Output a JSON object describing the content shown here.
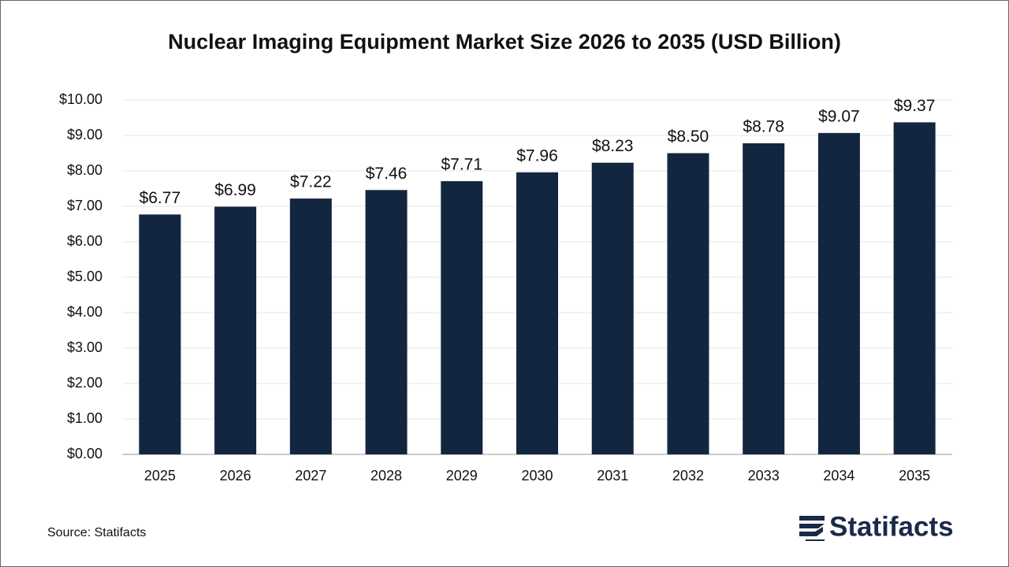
{
  "chart_data": {
    "type": "bar",
    "title": "Nuclear Imaging Equipment Market Size 2026 to 2035 (USD Billion)",
    "categories": [
      "2025",
      "2026",
      "2027",
      "2028",
      "2029",
      "2030",
      "2031",
      "2032",
      "2033",
      "2034",
      "2035"
    ],
    "values": [
      6.77,
      6.99,
      7.22,
      7.46,
      7.71,
      7.96,
      8.23,
      8.5,
      8.78,
      9.07,
      9.37
    ],
    "value_labels": [
      "$6.77",
      "$6.99",
      "$7.22",
      "$7.46",
      "$7.71",
      "$7.96",
      "$8.23",
      "$8.50",
      "$8.78",
      "$9.07",
      "$9.37"
    ],
    "color": "#132640",
    "ylim": [
      0,
      10
    ],
    "yticks": [
      {
        "value": 0,
        "label": "$0.00"
      },
      {
        "value": 1,
        "label": "$1.00"
      },
      {
        "value": 2,
        "label": "$2.00"
      },
      {
        "value": 3,
        "label": "$3.00"
      },
      {
        "value": 4,
        "label": "$4.00"
      },
      {
        "value": 5,
        "label": "$5.00"
      },
      {
        "value": 6,
        "label": "$6.00"
      },
      {
        "value": 7,
        "label": "$7.00"
      },
      {
        "value": 8,
        "label": "$8.00"
      },
      {
        "value": 9,
        "label": "$9.00"
      },
      {
        "value": 10,
        "label": "$10.00"
      }
    ],
    "grid": true
  },
  "source": "Source: Statifacts",
  "logo": "Statifacts"
}
